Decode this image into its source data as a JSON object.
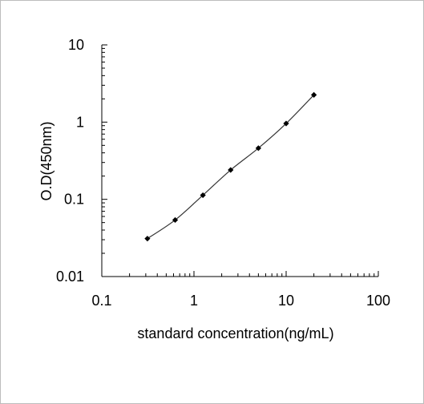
{
  "chart_data": {
    "type": "scatter",
    "title": "",
    "xlabel": "standard concentration(ng/mL)",
    "ylabel": "O.D(450nm)",
    "x_scale": "log",
    "y_scale": "log",
    "xlim": [
      0.1,
      100
    ],
    "ylim": [
      0.01,
      10
    ],
    "x_ticks": [
      "0.1",
      "1",
      "10",
      "100"
    ],
    "y_ticks": [
      "0.01",
      "0.1",
      "1",
      "10"
    ],
    "grid": false,
    "legend": "none",
    "series": [
      {
        "x": [
          0.3125,
          0.625,
          1.25,
          2.5,
          5,
          10,
          20
        ],
        "y": [
          0.031,
          0.054,
          0.113,
          0.24,
          0.46,
          0.96,
          2.25
        ]
      }
    ],
    "fit_curve": true,
    "colors": {
      "marker": "#000000",
      "line": "#333333",
      "axis": "#000000"
    }
  }
}
